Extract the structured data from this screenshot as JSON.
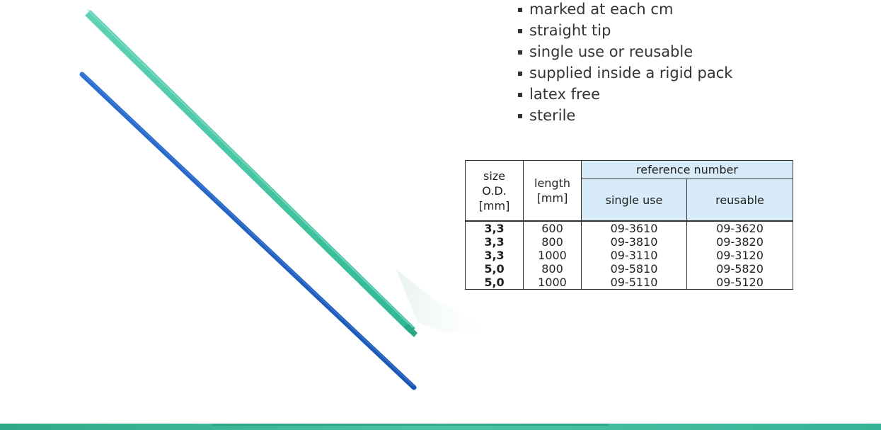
{
  "features": [
    "marked at each cm",
    "straight tip",
    "single use or reusable",
    "supplied inside a rigid pack",
    "latex free",
    "sterile"
  ],
  "table": {
    "header": {
      "size_line1": "size",
      "size_line2": "O.D.",
      "size_line3": "[mm]",
      "length_line1": "length",
      "length_line2": "[mm]",
      "reference": "reference number",
      "single_use": "single use",
      "reusable": "reusable"
    },
    "rows": [
      {
        "size": "3,3",
        "length": "600",
        "single_use": "09-3610",
        "reusable": "09-3620"
      },
      {
        "size": "3,3",
        "length": "800",
        "single_use": "09-3810",
        "reusable": "09-3820"
      },
      {
        "size": "3,3",
        "length": "1000",
        "single_use": "09-3110",
        "reusable": "09-3120"
      },
      {
        "size": "5,0",
        "length": "800",
        "single_use": "09-5810",
        "reusable": "09-5820"
      },
      {
        "size": "5,0",
        "length": "1000",
        "single_use": "09-5110",
        "reusable": "09-5120"
      }
    ]
  },
  "colors": {
    "green_tube": "#43c6a6",
    "blue_tube": "#1f63c4",
    "header_fill": "#d7ecf8",
    "footer_band": "#3ab89a"
  }
}
